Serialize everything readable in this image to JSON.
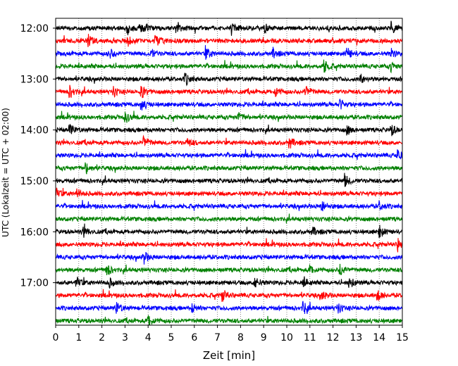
{
  "chart_data": {
    "type": "line",
    "subtype": "helicorder",
    "xlabel": "Zeit  [min]",
    "ylabel": "UTC (Lokalzeit = UTC + 02:00)",
    "xlim": [
      0,
      15
    ],
    "x_ticks": [
      "0",
      "1",
      "2",
      "3",
      "4",
      "5",
      "6",
      "7",
      "8",
      "9",
      "10",
      "11",
      "12",
      "13",
      "14",
      "15"
    ],
    "y_tick_labels": [
      "12:00",
      "13:00",
      "14:00",
      "15:00",
      "16:00",
      "17:00"
    ],
    "rows_per_hour": 4,
    "minutes_per_row": 15,
    "start_time": "12:00",
    "grid": "vertical dotted lines at each minute",
    "trace_colors": [
      "#000000",
      "#ff0000",
      "#0000ff",
      "#008000"
    ],
    "traces": [
      {
        "row": 0,
        "time": "12:00",
        "events": [
          3.1,
          3.6,
          3.8,
          5.2,
          7.6,
          9.0,
          14.5
        ]
      },
      {
        "row": 1,
        "time": "12:15",
        "events": [
          1.4,
          3.1,
          4.3
        ]
      },
      {
        "row": 2,
        "time": "12:30",
        "events": [
          2.3,
          4.1,
          6.5,
          9.4,
          12.6,
          14.5
        ]
      },
      {
        "row": 3,
        "time": "12:45",
        "events": [
          11.6,
          14.5
        ]
      },
      {
        "row": 4,
        "time": "13:00",
        "events": [
          5.6,
          13.2
        ]
      },
      {
        "row": 5,
        "time": "13:15",
        "events": [
          0.6,
          2.5,
          3.7,
          9.5,
          10.8
        ]
      },
      {
        "row": 6,
        "time": "13:30",
        "events": [
          3.7,
          12.3
        ]
      },
      {
        "row": 7,
        "time": "13:45",
        "events": [
          3.0,
          7.9
        ]
      },
      {
        "row": 8,
        "time": "14:00",
        "events": [
          0.6,
          12.6,
          14.5
        ]
      },
      {
        "row": 9,
        "time": "14:15",
        "events": [
          3.8,
          5.7,
          10.1
        ]
      },
      {
        "row": 10,
        "time": "14:30",
        "events": [
          14.8
        ]
      },
      {
        "row": 11,
        "time": "14:45",
        "events": [
          1.3
        ]
      },
      {
        "row": 12,
        "time": "15:00",
        "events": [
          12.5
        ]
      },
      {
        "row": 13,
        "time": "15:15",
        "events": [
          0.0,
          0.9
        ]
      },
      {
        "row": 14,
        "time": "15:30",
        "events": [
          11.5,
          14.0
        ]
      },
      {
        "row": 15,
        "time": "15:45",
        "events": []
      },
      {
        "row": 16,
        "time": "16:00",
        "events": [
          1.2,
          11.1,
          14.0
        ]
      },
      {
        "row": 17,
        "time": "16:15",
        "events": [
          14.8
        ]
      },
      {
        "row": 18,
        "time": "16:30",
        "events": [
          3.8
        ]
      },
      {
        "row": 19,
        "time": "16:45",
        "events": [
          2.2,
          11.0,
          12.3
        ]
      },
      {
        "row": 20,
        "time": "17:00",
        "events": [
          0.9,
          2.3,
          8.6,
          10.7,
          12.7
        ]
      },
      {
        "row": 21,
        "time": "17:15",
        "events": [
          7.2,
          11.5,
          13.9
        ]
      },
      {
        "row": 22,
        "time": "17:30",
        "events": [
          2.6,
          5.9,
          10.7,
          12.2
        ]
      },
      {
        "row": 23,
        "time": "17:45",
        "events": [
          4.0
        ]
      }
    ]
  }
}
